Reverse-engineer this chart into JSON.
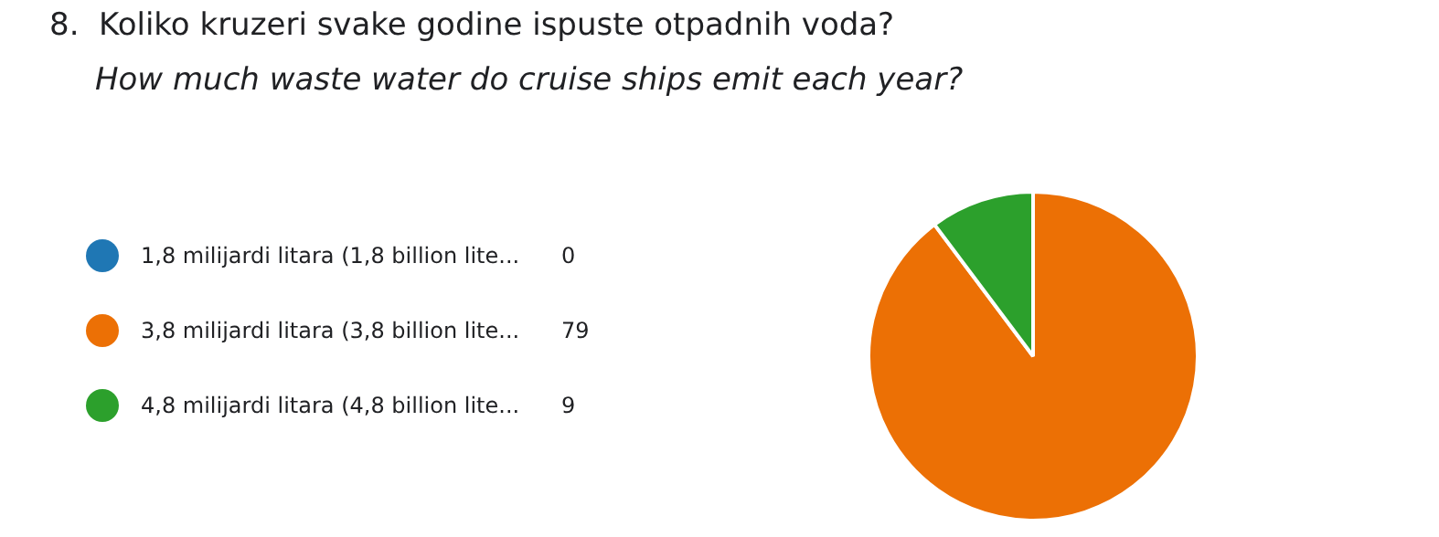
{
  "chart_data": {
    "type": "pie",
    "title": "8.  Koliko kruzeri svake godine ispuste otpadnih voda?",
    "subtitle": "How much waste water do cruise ships emit each year?",
    "categories": [
      "1,8 milijardi litara (1,8 billion lite...",
      "3,8 milijardi litara (3,8 billion lite...",
      "4,8 milijardi litara (4,8 billion lite..."
    ],
    "values": [
      0,
      79,
      9
    ],
    "colors": [
      "#1f77b4",
      "#ec7005",
      "#2ca02c"
    ],
    "value_labels": [
      "0",
      "79",
      "9"
    ],
    "legend": "left"
  }
}
